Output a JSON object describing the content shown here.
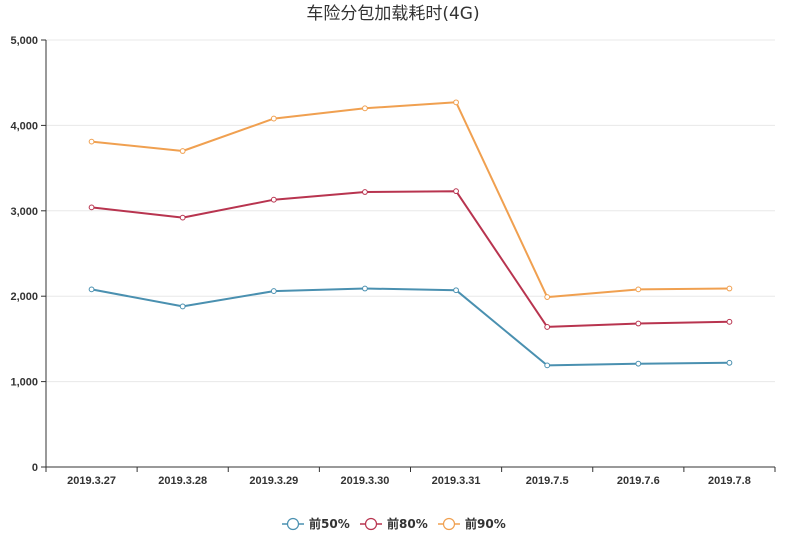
{
  "chart_data": {
    "type": "line",
    "title": "车险分包加载耗时(4G)",
    "categories": [
      "2019.3.27",
      "2019.3.28",
      "2019.3.29",
      "2019.3.30",
      "2019.3.31",
      "2019.7.5",
      "2019.7.6",
      "2019.7.8"
    ],
    "y_ticks": [
      "0",
      "1,000",
      "2,000",
      "3,000",
      "4,000",
      "5,000"
    ],
    "ylim": [
      0,
      5000
    ],
    "grid": true,
    "legend_position": "bottom-center",
    "series": [
      {
        "name": "前50%",
        "color": "#4a90b0",
        "values": [
          2080,
          1880,
          2060,
          2090,
          2070,
          1190,
          1210,
          1220
        ]
      },
      {
        "name": "前80%",
        "color": "#b8344f",
        "values": [
          3040,
          2920,
          3130,
          3220,
          3230,
          1640,
          1680,
          1700
        ]
      },
      {
        "name": "前90%",
        "color": "#f0a050",
        "values": [
          3810,
          3700,
          4080,
          4200,
          4270,
          1990,
          2080,
          2090
        ]
      }
    ]
  }
}
